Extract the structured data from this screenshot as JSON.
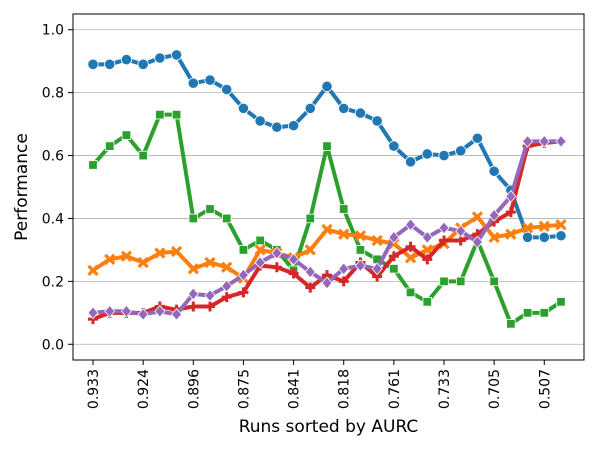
{
  "chart_data": {
    "type": "line",
    "xlabel": "Runs sorted by AURC",
    "ylabel": "Performance",
    "ylim": [
      -0.05,
      1.05
    ],
    "yticks": [
      0.0,
      0.2,
      0.4,
      0.6,
      0.8,
      1.0
    ],
    "ytick_labels": [
      "0.0",
      "0.2",
      "0.4",
      "0.6",
      "0.8",
      "1.0"
    ],
    "xtick_labels": [
      "0.933",
      "0.924",
      "0.896",
      "0.875",
      "0.841",
      "0.818",
      "0.761",
      "0.733",
      "0.705",
      "0.507"
    ],
    "xtick_every": 3,
    "grid": "horizontal",
    "legend": "none",
    "series": [
      {
        "color": "#1f77b4",
        "marker": "circle",
        "values": [
          0.89,
          0.89,
          0.905,
          0.89,
          0.91,
          0.92,
          0.83,
          0.84,
          0.81,
          0.75,
          0.71,
          0.69,
          0.695,
          0.75,
          0.82,
          0.75,
          0.735,
          0.71,
          0.63,
          0.58,
          0.605,
          0.6,
          0.615,
          0.655,
          0.55,
          0.49,
          0.34,
          0.34,
          0.345
        ]
      },
      {
        "color": "#2ca02c",
        "marker": "square",
        "values": [
          0.57,
          0.63,
          0.665,
          0.6,
          0.73,
          0.73,
          0.4,
          0.43,
          0.4,
          0.3,
          0.33,
          0.3,
          0.235,
          0.4,
          0.63,
          0.43,
          0.3,
          0.27,
          0.24,
          0.165,
          0.135,
          0.2,
          0.2,
          0.33,
          0.2,
          0.065,
          0.1,
          0.1,
          0.135
        ]
      },
      {
        "color": "#ff7f0e",
        "marker": "x",
        "values": [
          0.235,
          0.27,
          0.28,
          0.26,
          0.29,
          0.295,
          0.24,
          0.26,
          0.245,
          0.21,
          0.3,
          0.29,
          0.275,
          0.3,
          0.365,
          0.35,
          0.345,
          0.33,
          0.32,
          0.275,
          0.3,
          0.32,
          0.37,
          0.405,
          0.34,
          0.35,
          0.37,
          0.375,
          0.38
        ]
      },
      {
        "color": "#d62728",
        "marker": "plus",
        "values": [
          0.08,
          0.1,
          0.1,
          0.1,
          0.12,
          0.11,
          0.12,
          0.12,
          0.15,
          0.165,
          0.25,
          0.245,
          0.225,
          0.18,
          0.22,
          0.2,
          0.26,
          0.215,
          0.28,
          0.31,
          0.27,
          0.33,
          0.33,
          0.35,
          0.39,
          0.42,
          0.63,
          0.64,
          0.645
        ]
      },
      {
        "color": "#9467bd",
        "marker": "diamond",
        "values": [
          0.1,
          0.105,
          0.105,
          0.095,
          0.105,
          0.095,
          0.16,
          0.155,
          0.185,
          0.22,
          0.26,
          0.29,
          0.27,
          0.23,
          0.195,
          0.24,
          0.25,
          0.24,
          0.34,
          0.38,
          0.34,
          0.37,
          0.36,
          0.325,
          0.41,
          0.47,
          0.645,
          0.645,
          0.645
        ]
      }
    ]
  }
}
